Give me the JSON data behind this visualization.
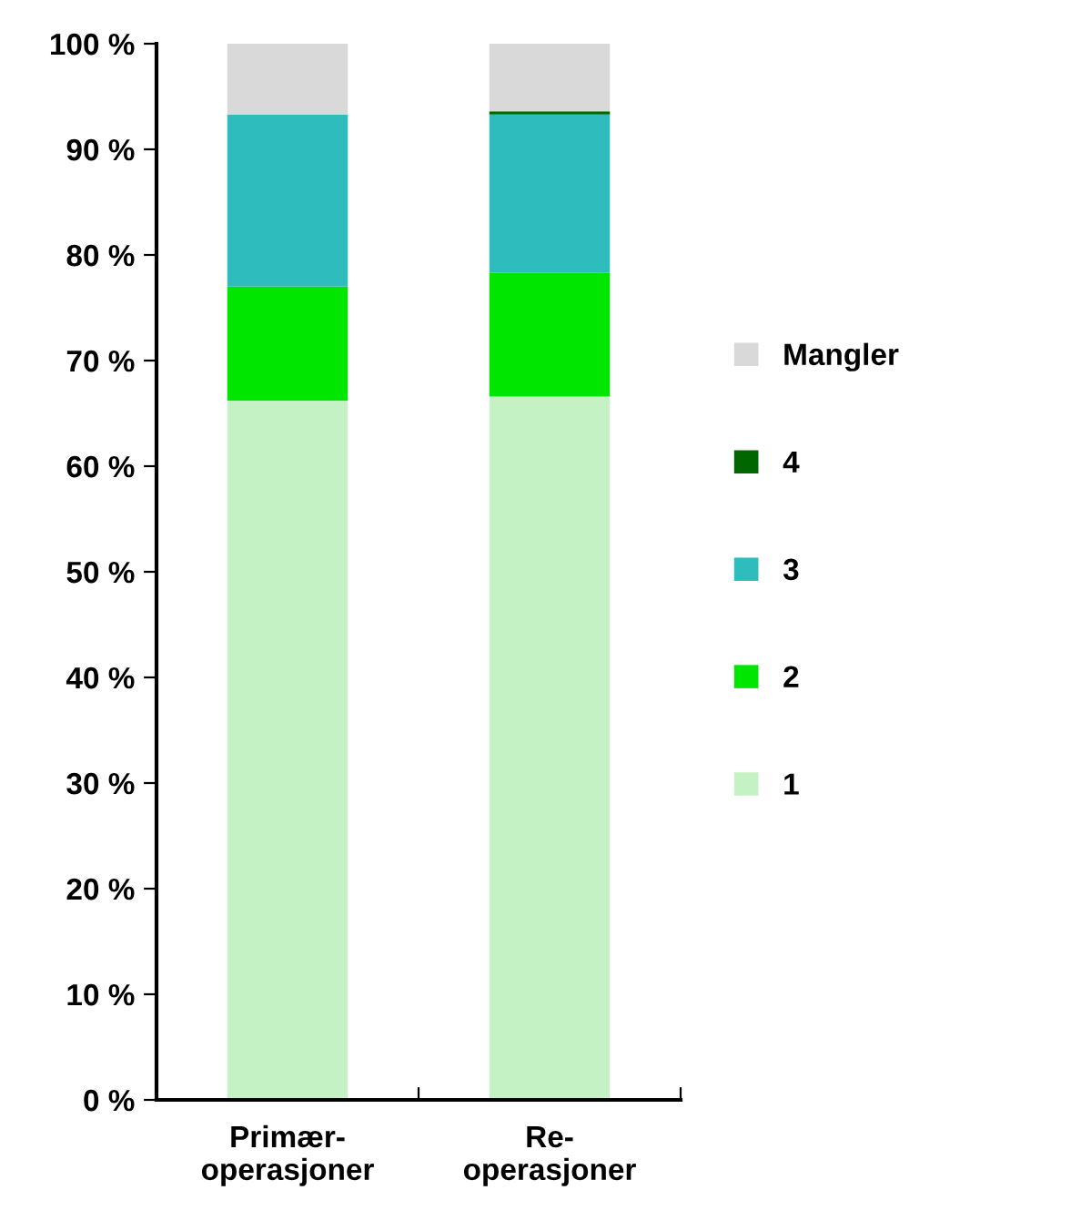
{
  "chart_data": {
    "type": "bar",
    "stacked": true,
    "categories": [
      "Primær-\noperasjoner",
      "Re-\noperasjoner"
    ],
    "series": [
      {
        "name": "1",
        "color": "#c4f2c4",
        "values": [
          66.2,
          66.6
        ]
      },
      {
        "name": "2",
        "color": "#00e600",
        "values": [
          10.8,
          11.7
        ]
      },
      {
        "name": "3",
        "color": "#2fbcbc",
        "values": [
          16.3,
          15.0
        ]
      },
      {
        "name": "4",
        "color": "#006600",
        "values": [
          0,
          0.3
        ]
      },
      {
        "name": "Mangler",
        "color": "#d9d9d9",
        "values": [
          6.7,
          6.4
        ]
      }
    ],
    "ylim": [
      0,
      100
    ],
    "yticks": [
      {
        "value": 0,
        "label": "0 %"
      },
      {
        "value": 10,
        "label": "10 %"
      },
      {
        "value": 20,
        "label": "20 %"
      },
      {
        "value": 30,
        "label": "30 %"
      },
      {
        "value": 40,
        "label": "40 %"
      },
      {
        "value": 50,
        "label": "50 %"
      },
      {
        "value": 60,
        "label": "60 %"
      },
      {
        "value": 70,
        "label": "70 %"
      },
      {
        "value": 80,
        "label": "80 %"
      },
      {
        "value": 90,
        "label": "90 %"
      },
      {
        "value": 100,
        "label": "100 %"
      }
    ],
    "grid": false,
    "legend": "right"
  }
}
